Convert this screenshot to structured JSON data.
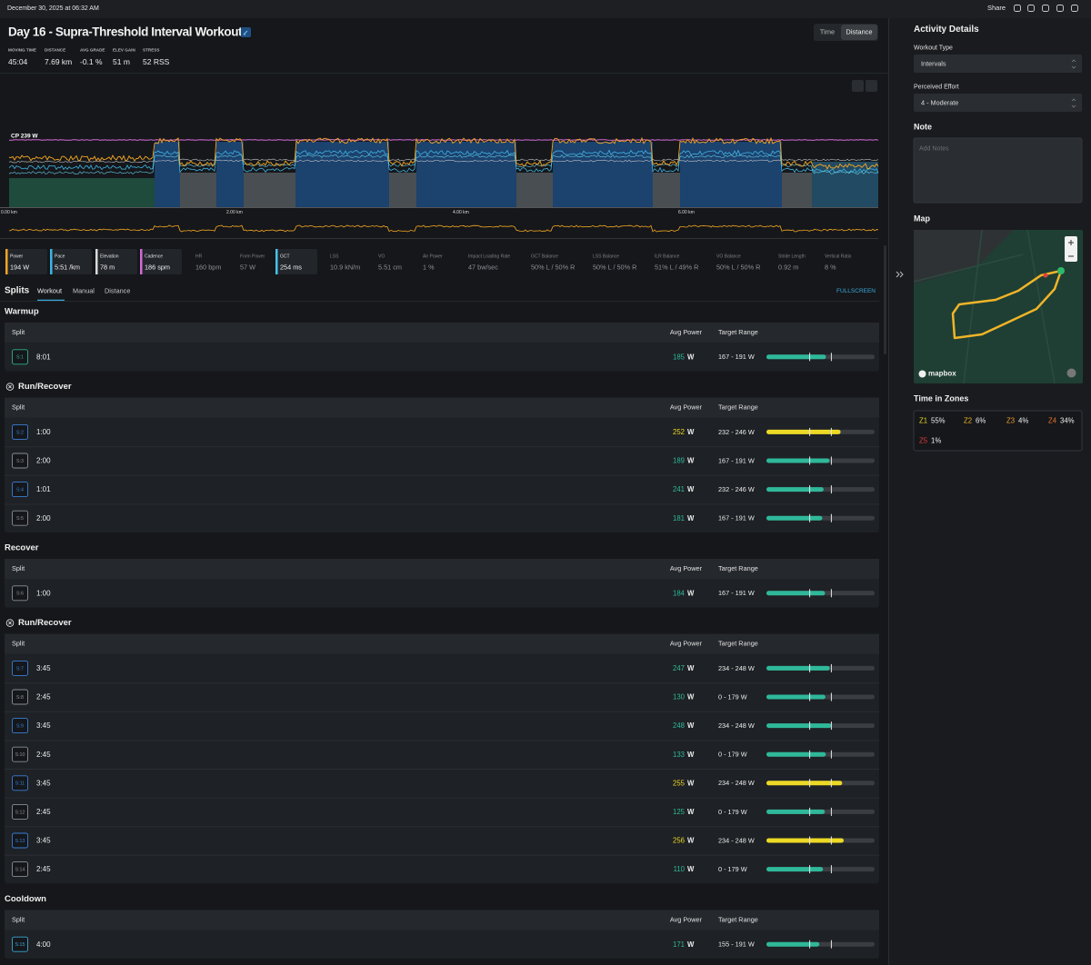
{
  "top_bar": {
    "date": "December 30, 2025 at 06:32 AM",
    "share": "Share"
  },
  "header": {
    "title": "Day 16 - Supra-Threshold Interval Workout",
    "stats": [
      {
        "label": "MOVING TIME",
        "value": "45:04"
      },
      {
        "label": "DISTANCE",
        "value": "7.69 km"
      },
      {
        "label": "AVG GRADE",
        "value": "-0.1 %"
      },
      {
        "label": "ELEV GAIN",
        "value": "51 m"
      },
      {
        "label": "STRESS",
        "value": "52 RSS"
      }
    ],
    "toggle": [
      "Time",
      "Distance"
    ]
  },
  "chart": {
    "cp_label": "CP 239 W",
    "x_labels": [
      "0.00 km",
      "2.00 km",
      "4.00 km",
      "6.00 km"
    ]
  },
  "metrics": [
    {
      "label": "Power",
      "value": "194 W",
      "color": "#f5a623"
    },
    {
      "label": "Pace",
      "value": "5:51 /km",
      "color": "#38b6e6"
    },
    {
      "label": "Elevation",
      "value": "78 m",
      "color": "#d9d9d9"
    },
    {
      "label": "Cadence",
      "value": "186 spm",
      "color": "#d36ad6"
    },
    {
      "label": "HR",
      "value": "160 bpm"
    },
    {
      "label": "Form Power",
      "value": "57 W"
    },
    {
      "label": "GCT",
      "value": "254 ms",
      "color": "#46c3ec"
    },
    {
      "label": "LSS",
      "value": "10.9 kN/m"
    },
    {
      "label": "VO",
      "value": "5.51 cm"
    },
    {
      "label": "Air Power",
      "value": "1 %"
    },
    {
      "label": "Impact Loading Rate",
      "value": "47 bw/sec"
    },
    {
      "label": "GCT Balance",
      "value": "50% L / 50% R"
    },
    {
      "label": "LSS Balance",
      "value": "50% L / 50% R"
    },
    {
      "label": "ILR Balance",
      "value": "51% L / 49% R"
    },
    {
      "label": "VO Balance",
      "value": "50% L / 50% R"
    },
    {
      "label": "Stride Length",
      "value": "0.92 m"
    },
    {
      "label": "Vertical Ratio",
      "value": "8 %"
    }
  ],
  "splits": {
    "title": "Splits",
    "tabs": [
      "Workout",
      "Manual",
      "Distance"
    ],
    "fullscreen": "FULLSCREEN",
    "columns": [
      "Split",
      "Avg Power",
      "Target Range"
    ],
    "groups": [
      {
        "name": "Warmup",
        "repeat": false,
        "rows": [
          {
            "split": "S:1",
            "time": "8:01",
            "avg_power": 185,
            "unit": "W",
            "target": "167 - 191 W",
            "color": "#2eaf8a"
          }
        ]
      },
      {
        "name": "Run/Recover",
        "repeat": true,
        "rows": [
          {
            "split": "S:2",
            "time": "1:00",
            "avg_power": 252,
            "unit": "W",
            "target": "232 - 246 W",
            "color": "#3a7fd6"
          },
          {
            "split": "S:3",
            "time": "2:00",
            "avg_power": 189,
            "unit": "W",
            "target": "167 - 191 W",
            "color": "#8a8f96"
          },
          {
            "split": "S:4",
            "time": "1:01",
            "avg_power": 241,
            "unit": "W",
            "target": "232 - 246 W",
            "color": "#3a7fd6"
          },
          {
            "split": "S:5",
            "time": "2:00",
            "avg_power": 181,
            "unit": "W",
            "target": "167 - 191 W",
            "color": "#8a8f96"
          }
        ]
      },
      {
        "name": "Recover",
        "repeat": false,
        "rows": [
          {
            "split": "S:6",
            "time": "1:00",
            "avg_power": 184,
            "unit": "W",
            "target": "167 - 191 W",
            "color": "#8a8f96"
          }
        ]
      },
      {
        "name": "Run/Recover",
        "repeat": true,
        "rows": [
          {
            "split": "S:7",
            "time": "3:45",
            "avg_power": 247,
            "unit": "W",
            "target": "234 - 248 W",
            "color": "#3a7fd6"
          },
          {
            "split": "S:8",
            "time": "2:45",
            "avg_power": 130,
            "unit": "W",
            "target": "0 - 179 W",
            "color": "#8a8f96"
          },
          {
            "split": "S:9",
            "time": "3:45",
            "avg_power": 248,
            "unit": "W",
            "target": "234 - 248 W",
            "color": "#3a7fd6"
          },
          {
            "split": "S:10",
            "time": "2:45",
            "avg_power": 133,
            "unit": "W",
            "target": "0 - 179 W",
            "color": "#8a8f96"
          },
          {
            "split": "S:11",
            "time": "3:45",
            "avg_power": 255,
            "unit": "W",
            "target": "234 - 248 W",
            "color": "#3a7fd6"
          },
          {
            "split": "S:12",
            "time": "2:45",
            "avg_power": 125,
            "unit": "W",
            "target": "0 - 179 W",
            "color": "#8a8f96"
          },
          {
            "split": "S:13",
            "time": "3:45",
            "avg_power": 256,
            "unit": "W",
            "target": "234 - 248 W",
            "color": "#3a7fd6"
          },
          {
            "split": "S:14",
            "time": "2:45",
            "avg_power": 110,
            "unit": "W",
            "target": "0 - 179 W",
            "color": "#8a8f96"
          }
        ]
      },
      {
        "name": "Cooldown",
        "repeat": false,
        "rows": [
          {
            "split": "S:15",
            "time": "4:00",
            "avg_power": 171,
            "unit": "W",
            "target": "155 - 191 W",
            "color": "#3aa8d8"
          }
        ]
      }
    ]
  },
  "sidebar": {
    "title": "Activity Details",
    "workout_type_label": "Workout Type",
    "workout_type": "Intervals",
    "effort_label": "Perceived Effort",
    "effort": "4 - Moderate",
    "note_label": "Note",
    "note_placeholder": "Add Notes",
    "map_label": "Map",
    "map_attribution": "mapbox",
    "zones_label": "Time in Zones",
    "zones": [
      {
        "zone": "Z1",
        "value": "55%",
        "color": "#e8d420"
      },
      {
        "zone": "Z2",
        "value": "6%",
        "color": "#f0b428"
      },
      {
        "zone": "Z3",
        "value": "4%",
        "color": "#ec9a2c"
      },
      {
        "zone": "Z4",
        "value": "34%",
        "color": "#e8702c"
      },
      {
        "zone": "Z5",
        "value": "1%",
        "color": "#e03c3c"
      }
    ]
  }
}
